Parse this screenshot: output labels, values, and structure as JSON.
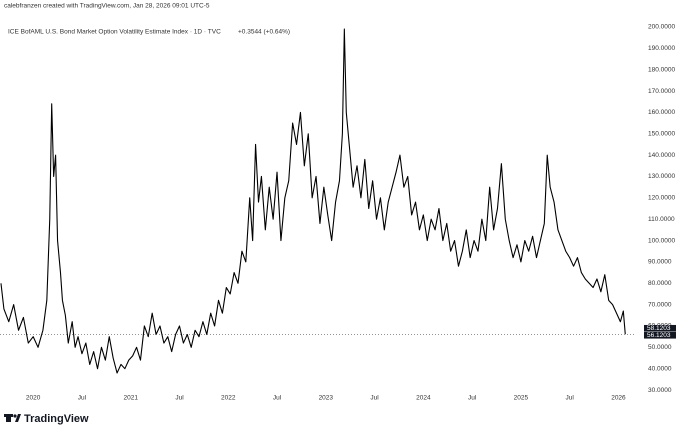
{
  "header": "calebfranzen created with TradingView.com, Jan 28, 2026 09:01 UTC-5",
  "logo": "TradingView",
  "chart_data": {
    "type": "line",
    "title": "ICE BofAML U.S. Bond Market Option Volatility Estimate Index · 1D · TVC",
    "change": "+0.3544 (+0.64%)",
    "price_labels": [
      "58.1203",
      "56.1203"
    ],
    "color": "#000000",
    "x": [
      2019.67,
      2019.7,
      2019.75,
      2019.8,
      2019.85,
      2019.9,
      2019.95,
      2020.0,
      2020.05,
      2020.1,
      2020.14,
      2020.17,
      2020.19,
      2020.21,
      2020.23,
      2020.25,
      2020.28,
      2020.3,
      2020.33,
      2020.36,
      2020.4,
      2020.43,
      2020.46,
      2020.5,
      2020.54,
      2020.58,
      2020.62,
      2020.66,
      2020.7,
      2020.74,
      2020.78,
      2020.82,
      2020.86,
      2020.9,
      2020.94,
      2020.98,
      2021.02,
      2021.06,
      2021.1,
      2021.14,
      2021.18,
      2021.22,
      2021.26,
      2021.3,
      2021.34,
      2021.38,
      2021.42,
      2021.46,
      2021.5,
      2021.54,
      2021.58,
      2021.62,
      2021.66,
      2021.7,
      2021.74,
      2021.78,
      2021.82,
      2021.86,
      2021.9,
      2021.94,
      2021.98,
      2022.02,
      2022.06,
      2022.1,
      2022.14,
      2022.18,
      2022.22,
      2022.25,
      2022.28,
      2022.31,
      2022.34,
      2022.38,
      2022.42,
      2022.46,
      2022.5,
      2022.54,
      2022.58,
      2022.62,
      2022.66,
      2022.7,
      2022.74,
      2022.78,
      2022.82,
      2022.86,
      2022.9,
      2022.94,
      2022.98,
      2023.02,
      2023.06,
      2023.1,
      2023.14,
      2023.17,
      2023.19,
      2023.21,
      2023.24,
      2023.28,
      2023.32,
      2023.36,
      2023.4,
      2023.44,
      2023.48,
      2023.52,
      2023.56,
      2023.6,
      2023.64,
      2023.68,
      2023.72,
      2023.76,
      2023.8,
      2023.84,
      2023.88,
      2023.92,
      2023.96,
      2024.0,
      2024.04,
      2024.08,
      2024.12,
      2024.16,
      2024.2,
      2024.24,
      2024.28,
      2024.32,
      2024.36,
      2024.4,
      2024.44,
      2024.48,
      2024.52,
      2024.56,
      2024.6,
      2024.64,
      2024.68,
      2024.72,
      2024.76,
      2024.8,
      2024.84,
      2024.88,
      2024.92,
      2024.96,
      2025.0,
      2025.04,
      2025.08,
      2025.12,
      2025.16,
      2025.2,
      2025.24,
      2025.27,
      2025.3,
      2025.34,
      2025.38,
      2025.42,
      2025.46,
      2025.5,
      2025.54,
      2025.58,
      2025.62,
      2025.66,
      2025.7,
      2025.74,
      2025.78,
      2025.82,
      2025.86,
      2025.9,
      2025.94,
      2025.98,
      2026.02,
      2026.05,
      2026.07
    ],
    "values": [
      80,
      68,
      62,
      70,
      58,
      64,
      52,
      55,
      50,
      58,
      72,
      110,
      164,
      130,
      140,
      100,
      85,
      72,
      65,
      52,
      62,
      50,
      55,
      47,
      52,
      42,
      48,
      40,
      50,
      44,
      55,
      45,
      38,
      42,
      40,
      44,
      46,
      50,
      44,
      60,
      55,
      66,
      56,
      60,
      52,
      55,
      48,
      56,
      60,
      52,
      56,
      50,
      58,
      55,
      62,
      56,
      66,
      60,
      72,
      66,
      78,
      75,
      85,
      80,
      95,
      90,
      120,
      100,
      145,
      118,
      130,
      105,
      125,
      110,
      132,
      100,
      120,
      128,
      155,
      145,
      160,
      135,
      150,
      120,
      130,
      108,
      125,
      112,
      100,
      118,
      128,
      150,
      199,
      160,
      145,
      125,
      135,
      120,
      138,
      115,
      128,
      110,
      120,
      105,
      118,
      125,
      132,
      140,
      125,
      130,
      112,
      118,
      105,
      112,
      100,
      110,
      105,
      115,
      100,
      108,
      95,
      100,
      88,
      95,
      105,
      92,
      100,
      95,
      110,
      100,
      125,
      105,
      115,
      136,
      110,
      100,
      92,
      98,
      90,
      100,
      95,
      102,
      92,
      100,
      108,
      140,
      125,
      118,
      105,
      100,
      95,
      92,
      88,
      92,
      85,
      82,
      80,
      78,
      82,
      76,
      84,
      72,
      70,
      66,
      62,
      67,
      56.1203
    ],
    "xlim": [
      2019.66,
      2026.18
    ],
    "ylim": [
      23,
      204.2
    ],
    "xticks": [
      {
        "value": 2020,
        "label": "2020"
      },
      {
        "value": 2020.5,
        "label": "Jul"
      },
      {
        "value": 2021,
        "label": "2021"
      },
      {
        "value": 2021.5,
        "label": "Jul"
      },
      {
        "value": 2022,
        "label": "2022"
      },
      {
        "value": 2022.5,
        "label": "Jul"
      },
      {
        "value": 2023,
        "label": "2023"
      },
      {
        "value": 2023.5,
        "label": "Jul"
      },
      {
        "value": 2024,
        "label": "2024"
      },
      {
        "value": 2024.5,
        "label": "Jul"
      },
      {
        "value": 2025,
        "label": "2025"
      },
      {
        "value": 2025.5,
        "label": "Jul"
      },
      {
        "value": 2026,
        "label": "2026"
      }
    ],
    "yticks": [
      {
        "value": 30,
        "label": "30.0000"
      },
      {
        "value": 40,
        "label": "40.0000"
      },
      {
        "value": 50,
        "label": "50.0000"
      },
      {
        "value": 60,
        "label": "60.0000"
      },
      {
        "value": 70,
        "label": "70.0000"
      },
      {
        "value": 80,
        "label": "80.0000"
      },
      {
        "value": 90,
        "label": "90.0000"
      },
      {
        "value": 100,
        "label": "100.0000"
      },
      {
        "value": 110,
        "label": "110.0000"
      },
      {
        "value": 120,
        "label": "120.0000"
      },
      {
        "value": 130,
        "label": "130.0000"
      },
      {
        "value": 140,
        "label": "140.0000"
      },
      {
        "value": 150,
        "label": "150.0000"
      },
      {
        "value": 160,
        "label": "160.0000"
      },
      {
        "value": 170,
        "label": "170.0000"
      },
      {
        "value": 180,
        "label": "180.0000"
      },
      {
        "value": 190,
        "label": "190.0000"
      },
      {
        "value": 200,
        "label": "200.0000"
      }
    ]
  }
}
